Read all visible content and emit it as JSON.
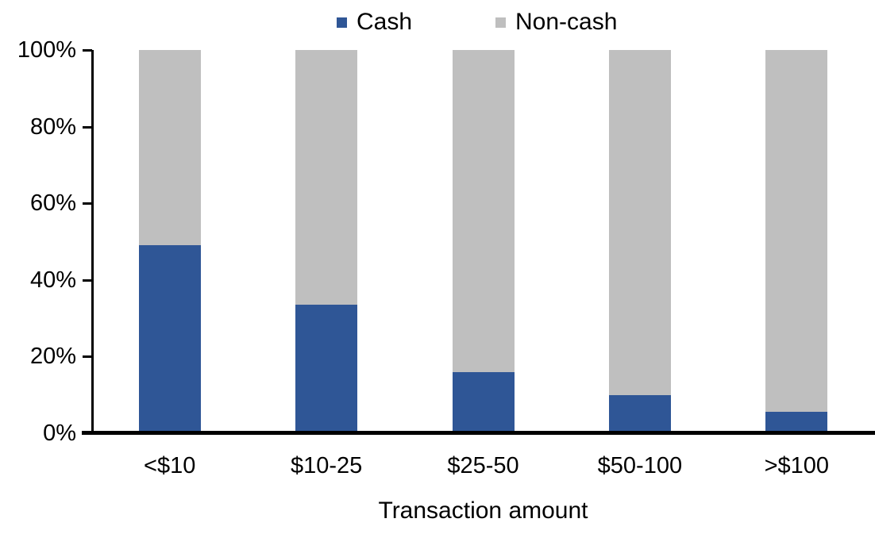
{
  "chart_data": {
    "type": "bar",
    "stacked": true,
    "percent_stacked": true,
    "title": "",
    "xlabel": "Transaction amount",
    "ylabel": "",
    "ylim": [
      0,
      100
    ],
    "grid": false,
    "legend_position": "top",
    "categories": [
      "<$10",
      "$10-25",
      "$25-50",
      "$50-100",
      ">$100"
    ],
    "series": [
      {
        "name": "Cash",
        "color": "#2F5696",
        "values": [
          49,
          33.5,
          16,
          10,
          5.5
        ]
      },
      {
        "name": "Non-cash",
        "color": "#BFBFBF",
        "values": [
          51,
          66.5,
          84,
          90,
          94.5
        ]
      }
    ],
    "yticks": [
      {
        "value": 0,
        "label": "0%"
      },
      {
        "value": 20,
        "label": "20%"
      },
      {
        "value": 40,
        "label": "40%"
      },
      {
        "value": 60,
        "label": "60%"
      },
      {
        "value": 80,
        "label": "80%"
      },
      {
        "value": 100,
        "label": "100%"
      }
    ]
  }
}
